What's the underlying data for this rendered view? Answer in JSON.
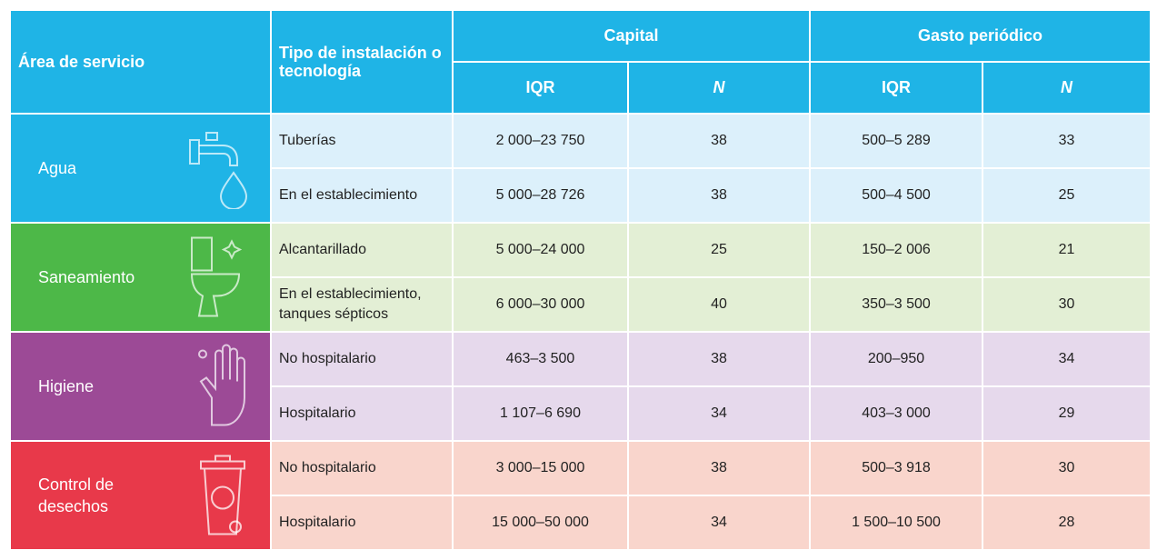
{
  "header": {
    "area": "Área de servicio",
    "type": "Tipo de instalación o tecnología",
    "capital": "Capital",
    "recurrent": "Gasto periódico",
    "subheaders": [
      "IQR",
      "N",
      "IQR",
      "N"
    ]
  },
  "groups": [
    {
      "area": "Agua",
      "rows": [
        [
          "Tuberías",
          "2 000–23 750",
          38,
          "500–5 289",
          33
        ],
        [
          "En el establecimiento",
          "5 000–28 726",
          38,
          "500–4 500",
          25
        ]
      ]
    },
    {
      "area": "Saneamiento",
      "rows": [
        [
          "Alcantarillado",
          "5 000–24 000",
          25,
          "150–2 006",
          21
        ],
        [
          "En el establecimiento, tanques sépticos",
          "6 000–30 000",
          40,
          "350–3 500",
          30
        ]
      ]
    },
    {
      "area": "Higiene",
      "rows": [
        [
          "No hospitalario",
          "463–3 500",
          38,
          "200–950",
          34
        ],
        [
          "Hospitalario",
          "1 107–6 690",
          34,
          "403–3 000",
          29
        ]
      ]
    },
    {
      "area": "Control de desechos",
      "rows": [
        [
          "No hospitalario",
          "3 000–15 000",
          38,
          "500–3 918",
          30
        ],
        [
          "Hospitalario",
          "15 000–50 000",
          34,
          "1 500–10 500",
          28
        ]
      ]
    }
  ]
}
